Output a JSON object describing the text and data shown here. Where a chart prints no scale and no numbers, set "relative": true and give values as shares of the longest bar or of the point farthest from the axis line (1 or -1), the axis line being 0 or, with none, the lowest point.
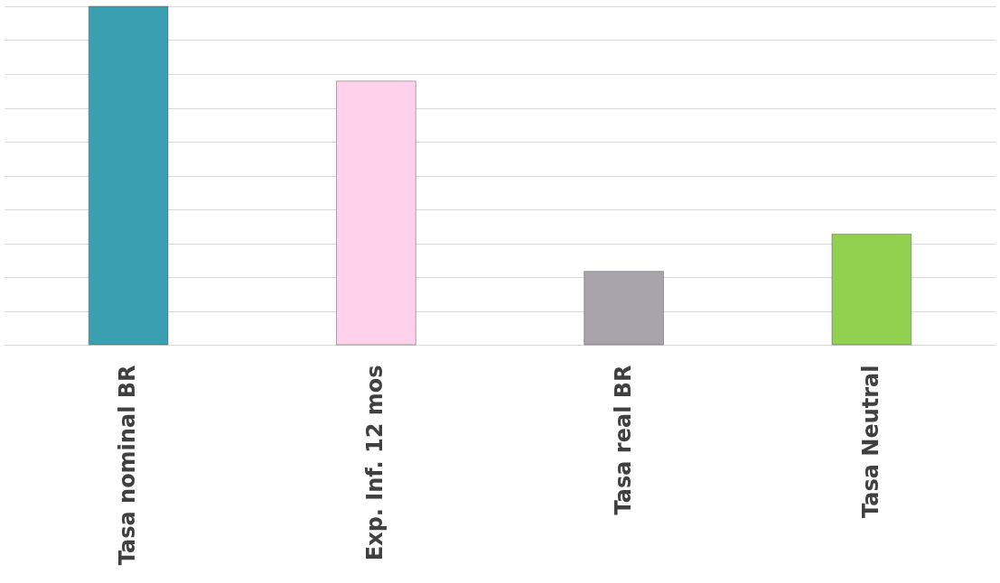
{
  "chart_data": {
    "type": "bar",
    "relative": true,
    "grid": true,
    "categories": [
      "Tasa nominal BR",
      "Exp. Inf. 12 mos",
      "Tasa real BR",
      "Tasa Neutral"
    ],
    "values": [
      1,
      0.779,
      0.217,
      0.327
    ],
    "colors": [
      "#3a9fb0",
      "#ffd1ea",
      "#a9a3ab",
      "#92d050"
    ]
  }
}
